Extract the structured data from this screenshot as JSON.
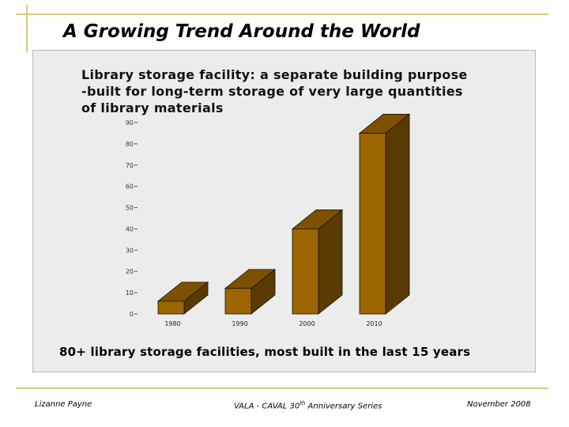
{
  "slide": {
    "title": "A Growing Trend Around the World",
    "definition": [
      "Library storage facility:  a separate building purpose",
      "-built for long-term storage of very large quantities",
      "of library materials"
    ],
    "caption": "80+ library storage facilities, most built in the last 15 years"
  },
  "footer": {
    "author": "Lizanne Payne",
    "series_pre": "VALA - CAVAL 30",
    "series_sup": "th",
    "series_post": " Anniversary Series",
    "date": "November 2008"
  },
  "colors": {
    "bar_front": "#9c6500",
    "bar_top": "#7d5100",
    "bar_side": "#5a3a00",
    "rule": "#d8c878",
    "panel": "#ececec"
  },
  "chart_data": {
    "type": "bar",
    "categories": [
      "1980",
      "1990",
      "2000",
      "2010"
    ],
    "values": [
      6,
      12,
      40,
      85
    ],
    "title": "",
    "xlabel": "",
    "ylabel": "",
    "ylim": [
      0,
      90
    ],
    "yticks": [
      "0",
      "10",
      "20",
      "30",
      "40",
      "50",
      "60",
      "70",
      "80",
      "90"
    ],
    "grid": false,
    "style": "3d"
  }
}
